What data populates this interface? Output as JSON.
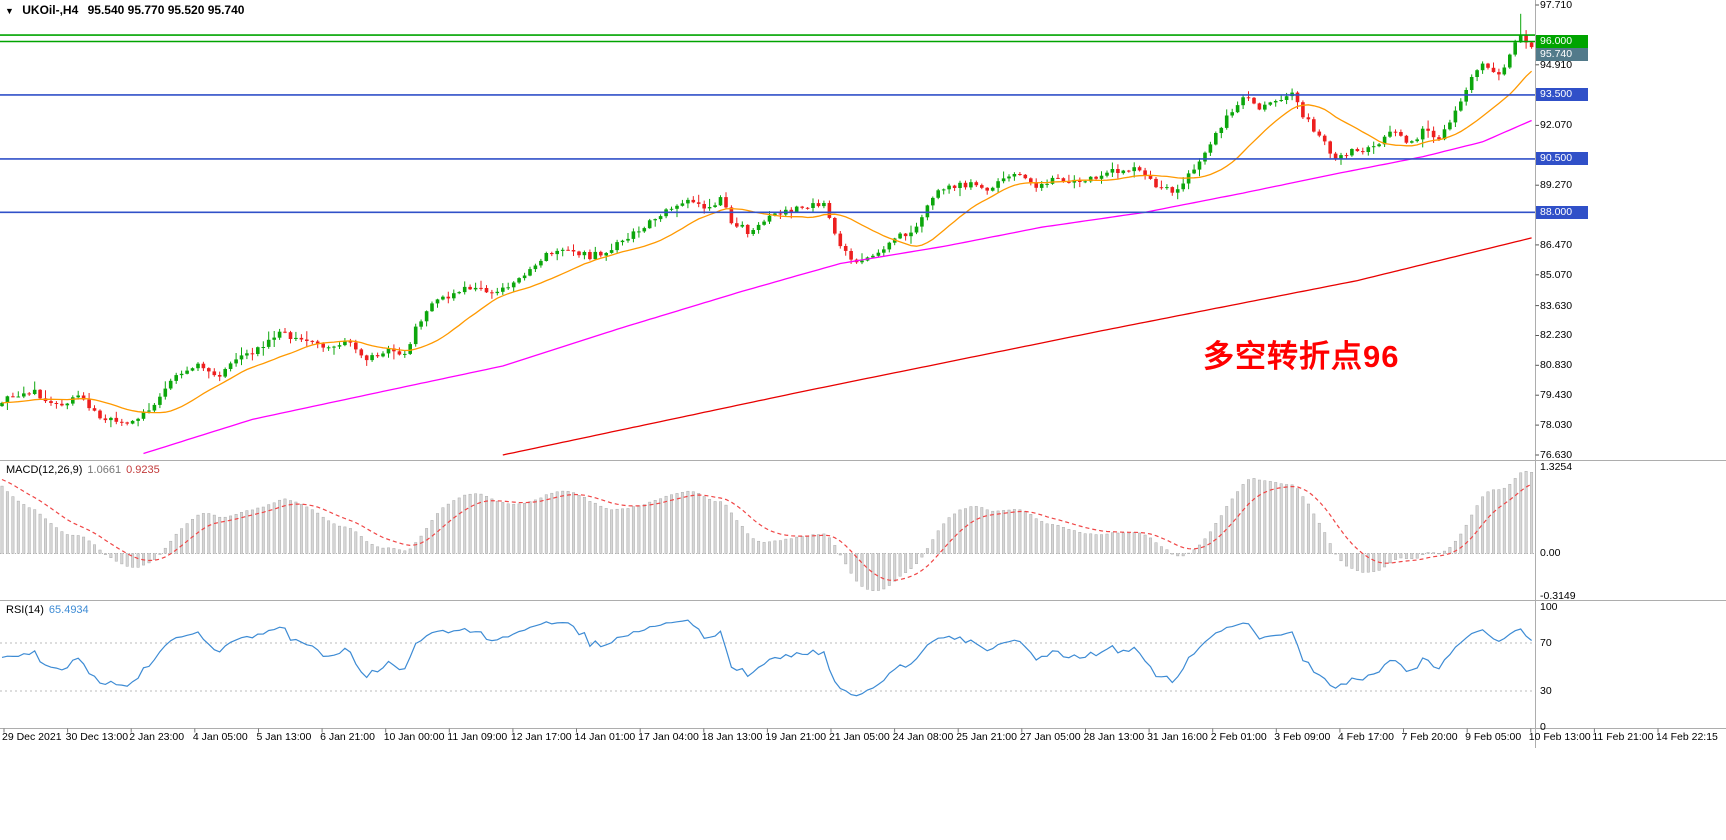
{
  "title_bar": {
    "symbol_period": "UKOil-,H4",
    "quote_ohlc": "95.540 95.770 95.520 95.740"
  },
  "annotation": {
    "text": "多空转折点96",
    "color": "#FF0000"
  },
  "colors": {
    "bull": "#0CA60C",
    "bear": "#ED1F1F",
    "ma_fast": "#FF9900",
    "ma_mid": "#FF00FF",
    "ma_slow": "#E80000",
    "hline_green": "#00A400",
    "hline_blue": "#3050C8",
    "macd_hist": "#D6D6D6",
    "macd_hist_border": "#ABABAB",
    "macd_signal": "#F04646",
    "rsi_line": "#3D8BD4",
    "level_dotted": "#BBBBBB",
    "separator": "#ADADAD",
    "badge_current_bg": "#527A8A"
  },
  "price_axis": {
    "labels": [
      {
        "text": "97.710",
        "value": 97.71
      },
      {
        "text": "94.910",
        "value": 94.91
      },
      {
        "text": "92.070",
        "value": 92.07
      },
      {
        "text": "89.270",
        "value": 89.27
      },
      {
        "text": "86.470",
        "value": 86.47
      },
      {
        "text": "85.070",
        "value": 85.07
      },
      {
        "text": "83.630",
        "value": 83.63
      },
      {
        "text": "82.230",
        "value": 82.23
      },
      {
        "text": "80.830",
        "value": 80.83
      },
      {
        "text": "79.430",
        "value": 79.43
      },
      {
        "text": "78.030",
        "value": 78.03
      },
      {
        "text": "76.630",
        "value": 76.63
      }
    ],
    "badges": [
      {
        "label": "96.000",
        "price": 96.0,
        "bg": "#00A400"
      },
      {
        "label": "95.740",
        "price": 95.74,
        "bg": "#527A8A"
      },
      {
        "label": "93.500",
        "price": 93.5,
        "bg": "#3050C8"
      },
      {
        "label": "90.500",
        "price": 90.5,
        "bg": "#3050C8"
      },
      {
        "label": "88.000",
        "price": 88.0,
        "bg": "#3050C8"
      }
    ]
  },
  "hlines": [
    {
      "price": 96.3,
      "color": "#00A400"
    },
    {
      "price": 96.0,
      "color": "#00A400"
    },
    {
      "price": 93.5,
      "color": "#3050C8"
    },
    {
      "price": 90.5,
      "color": "#3050C8"
    },
    {
      "price": 88.0,
      "color": "#3050C8"
    }
  ],
  "macd_panel": {
    "label": "MACD(12,26,9)",
    "value_main": "1.0661",
    "value_signal": "0.9235",
    "axis_top": "1.3254",
    "axis_zero": "0.00",
    "axis_bottom": "-0.3149"
  },
  "rsi_panel": {
    "label": "RSI(14)",
    "value": "65.4934",
    "axis": [
      {
        "text": "100",
        "value": 100
      },
      {
        "text": "70",
        "value": 70
      },
      {
        "text": "30",
        "value": 30
      },
      {
        "text": "0",
        "value": 0
      }
    ],
    "levels": [
      70,
      30
    ]
  },
  "time_axis": {
    "labels": [
      "29 Dec 2021",
      "30 Dec 13:00",
      "2 Jan 23:00",
      "4 Jan 05:00",
      "5 Jan 13:00",
      "6 Jan 21:00",
      "10 Jan 00:00",
      "11 Jan 09:00",
      "12 Jan 17:00",
      "14 Jan 01:00",
      "17 Jan 04:00",
      "18 Jan 13:00",
      "19 Jan 21:00",
      "21 Jan 05:00",
      "24 Jan 08:00",
      "25 Jan 21:00",
      "27 Jan 05:00",
      "28 Jan 13:00",
      "31 Jan 16:00",
      "2 Feb 01:00",
      "3 Feb 09:00",
      "4 Feb 17:00",
      "7 Feb 20:00",
      "9 Feb 05:00",
      "10 Feb 13:00",
      "11 Feb 21:00",
      "14 Feb 22:15"
    ]
  },
  "chart_data": {
    "type": "candlestick",
    "symbol": "UKOil-",
    "timeframe": "H4",
    "current_quote": {
      "open": 95.54,
      "high": 95.77,
      "low": 95.52,
      "close": 95.74
    },
    "y_range": [
      76.63,
      97.71
    ],
    "candle_count": 282,
    "price_waypoints": [
      [
        0,
        79.2
      ],
      [
        6,
        79.6
      ],
      [
        10,
        78.9
      ],
      [
        14,
        79.4
      ],
      [
        18,
        78.4
      ],
      [
        23,
        78.0
      ],
      [
        28,
        79.0
      ],
      [
        32,
        80.3
      ],
      [
        36,
        80.8
      ],
      [
        40,
        80.4
      ],
      [
        43,
        81.0
      ],
      [
        47,
        81.6
      ],
      [
        51,
        82.3
      ],
      [
        55,
        82.1
      ],
      [
        59,
        81.6
      ],
      [
        64,
        81.9
      ],
      [
        67,
        81.1
      ],
      [
        71,
        81.6
      ],
      [
        74,
        81.3
      ],
      [
        76,
        82.6
      ],
      [
        79,
        83.7
      ],
      [
        83,
        84.2
      ],
      [
        87,
        84.6
      ],
      [
        90,
        84.1
      ],
      [
        93,
        84.5
      ],
      [
        97,
        85.3
      ],
      [
        100,
        86.1
      ],
      [
        104,
        86.3
      ],
      [
        108,
        85.9
      ],
      [
        111,
        86.2
      ],
      [
        115,
        86.8
      ],
      [
        119,
        87.5
      ],
      [
        122,
        88.2
      ],
      [
        126,
        88.5
      ],
      [
        129,
        88.2
      ],
      [
        132,
        88.6
      ],
      [
        134,
        87.6
      ],
      [
        137,
        87.1
      ],
      [
        141,
        87.9
      ],
      [
        145,
        88.1
      ],
      [
        148,
        88.3
      ],
      [
        151,
        88.5
      ],
      [
        154,
        86.3
      ],
      [
        157,
        85.6
      ],
      [
        161,
        86.2
      ],
      [
        165,
        86.9
      ],
      [
        168,
        87.2
      ],
      [
        171,
        88.8
      ],
      [
        175,
        89.2
      ],
      [
        179,
        89.4
      ],
      [
        181,
        88.9
      ],
      [
        184,
        89.6
      ],
      [
        187,
        89.8
      ],
      [
        190,
        89.2
      ],
      [
        193,
        89.5
      ],
      [
        197,
        89.4
      ],
      [
        201,
        89.7
      ],
      [
        204,
        89.9
      ],
      [
        208,
        90.1
      ],
      [
        212,
        89.3
      ],
      [
        215,
        88.9
      ],
      [
        217,
        89.4
      ],
      [
        220,
        90.3
      ],
      [
        223,
        91.6
      ],
      [
        226,
        92.8
      ],
      [
        228,
        93.4
      ],
      [
        231,
        92.9
      ],
      [
        234,
        93.2
      ],
      [
        237,
        93.6
      ],
      [
        239,
        92.6
      ],
      [
        242,
        91.5
      ],
      [
        245,
        90.6
      ],
      [
        248,
        90.9
      ],
      [
        250,
        90.7
      ],
      [
        253,
        91.3
      ],
      [
        256,
        91.8
      ],
      [
        259,
        91.2
      ],
      [
        261,
        91.9
      ],
      [
        264,
        91.4
      ],
      [
        267,
        92.8
      ],
      [
        270,
        94.3
      ],
      [
        272,
        95.1
      ],
      [
        275,
        94.5
      ],
      [
        277,
        95.3
      ],
      [
        279,
        96.4
      ],
      [
        280,
        95.9
      ],
      [
        281,
        95.74
      ]
    ],
    "spike": {
      "index": 279,
      "high": 97.3
    },
    "moving_averages": [
      {
        "name": "ma-fast",
        "type": "sma",
        "period": 16,
        "color": "#FF9900"
      },
      {
        "name": "ma-mid",
        "type": "waypoints",
        "color": "#FF00FF",
        "points": [
          [
            26,
            76.7
          ],
          [
            46,
            78.3
          ],
          [
            68,
            79.5
          ],
          [
            92,
            80.8
          ],
          [
            114,
            82.6
          ],
          [
            136,
            84.3
          ],
          [
            154,
            85.6
          ],
          [
            173,
            86.4
          ],
          [
            191,
            87.3
          ],
          [
            210,
            88.0
          ],
          [
            228,
            88.9
          ],
          [
            245,
            89.8
          ],
          [
            261,
            90.6
          ],
          [
            272,
            91.3
          ],
          [
            281,
            92.3
          ]
        ]
      },
      {
        "name": "ma-slow",
        "type": "waypoints",
        "color": "#E80000",
        "points": [
          [
            92,
            76.63
          ],
          [
            147,
            79.6
          ],
          [
            203,
            82.5
          ],
          [
            249,
            84.8
          ],
          [
            281,
            86.8
          ]
        ]
      }
    ],
    "indicators": {
      "macd": {
        "params": [
          12,
          26,
          9
        ],
        "display_values": [
          1.0661,
          0.9235
        ],
        "axis_range": [
          -0.3149,
          1.3254
        ]
      },
      "rsi": {
        "period": 14,
        "display_value": 65.4934,
        "levels": [
          70,
          30
        ],
        "axis_range": [
          0,
          100
        ]
      }
    }
  }
}
